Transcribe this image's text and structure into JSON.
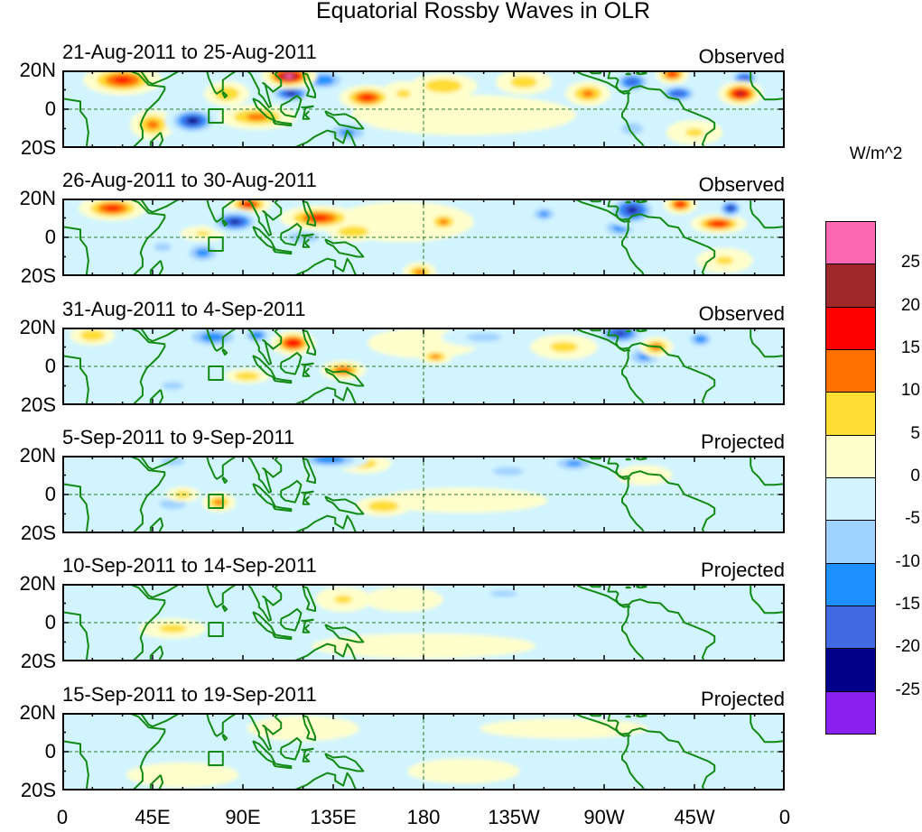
{
  "title": "Equatorial Rossby Waves in OLR",
  "lat_labels": [
    "20N",
    "0",
    "20S"
  ],
  "lon_labels": [
    "0",
    "45E",
    "90E",
    "135E",
    "180",
    "135W",
    "90W",
    "45W",
    "0"
  ],
  "colorbar": {
    "unit": "W/m^2",
    "labels": [
      "25",
      "20",
      "15",
      "10",
      "5",
      "0",
      "-5",
      "-10",
      "-15",
      "-20",
      "-25"
    ],
    "colors": [
      "#ff69b4",
      "#a02828",
      "#ff0000",
      "#ff7000",
      "#ffdd33",
      "#ffffcc",
      "#d2f4ff",
      "#a0d2ff",
      "#1e90ff",
      "#4169e1",
      "#00008b",
      "#8a20f0"
    ]
  },
  "coast_color": "#138a13",
  "panels": [
    {
      "date_range": "21-Aug-2011 to 25-Aug-2011",
      "type": "Observed",
      "blobs": [
        [
          200,
          -3,
          40,
          8,
          3
        ],
        [
          30,
          15,
          14,
          6,
          17
        ],
        [
          45,
          -8,
          8,
          6,
          12
        ],
        [
          65,
          -6,
          10,
          6,
          -23
        ],
        [
          82,
          8,
          8,
          5,
          10
        ],
        [
          97,
          -4,
          14,
          5,
          12
        ],
        [
          113,
          17,
          10,
          5,
          27
        ],
        [
          114,
          8,
          9,
          4,
          -22
        ],
        [
          130,
          15,
          10,
          5,
          -15
        ],
        [
          152,
          6,
          10,
          5,
          17
        ],
        [
          142,
          -12,
          10,
          5,
          -12
        ],
        [
          170,
          8,
          8,
          5,
          6
        ],
        [
          190,
          12,
          12,
          5,
          10
        ],
        [
          230,
          14,
          10,
          5,
          8
        ],
        [
          262,
          8,
          8,
          5,
          12
        ],
        [
          284,
          14,
          8,
          5,
          -18
        ],
        [
          304,
          18,
          6,
          4,
          17
        ],
        [
          307,
          8,
          8,
          4,
          -20
        ],
        [
          338,
          8,
          8,
          5,
          22
        ],
        [
          340,
          16,
          6,
          4,
          -20
        ],
        [
          284,
          -10,
          8,
          5,
          -8
        ],
        [
          315,
          -12,
          10,
          5,
          6
        ]
      ]
    },
    {
      "date_range": "26-Aug-2011 to 30-Aug-2011",
      "type": "Observed",
      "blobs": [
        [
          170,
          8,
          25,
          8,
          3
        ],
        [
          25,
          15,
          12,
          5,
          17
        ],
        [
          50,
          -5,
          10,
          5,
          -6
        ],
        [
          70,
          -8,
          8,
          5,
          -13
        ],
        [
          93,
          17,
          8,
          4,
          18
        ],
        [
          86,
          8,
          10,
          5,
          -22
        ],
        [
          128,
          10,
          14,
          5,
          17
        ],
        [
          145,
          3,
          10,
          4,
          10
        ],
        [
          120,
          0,
          10,
          4,
          -10
        ],
        [
          70,
          2,
          8,
          3,
          6
        ],
        [
          190,
          8,
          6,
          4,
          12
        ],
        [
          240,
          12,
          6,
          4,
          -12
        ],
        [
          284,
          14,
          10,
          7,
          -22
        ],
        [
          278,
          5,
          8,
          5,
          -13
        ],
        [
          308,
          17,
          6,
          4,
          18
        ],
        [
          333,
          15,
          5,
          4,
          -22
        ],
        [
          327,
          7,
          10,
          4,
          18
        ],
        [
          178,
          -18,
          6,
          4,
          12
        ],
        [
          330,
          -12,
          10,
          5,
          6
        ]
      ]
    },
    {
      "date_range": "31-Aug-2011 to 4-Sep-2011",
      "type": "Observed",
      "blobs": [
        [
          180,
          12,
          20,
          6,
          3
        ],
        [
          15,
          16,
          8,
          4,
          10
        ],
        [
          55,
          -10,
          12,
          5,
          -6
        ],
        [
          75,
          15,
          12,
          5,
          -14
        ],
        [
          97,
          16,
          6,
          4,
          -15
        ],
        [
          115,
          12,
          8,
          5,
          20
        ],
        [
          140,
          -2,
          8,
          4,
          15
        ],
        [
          92,
          -5,
          8,
          3,
          10
        ],
        [
          186,
          5,
          6,
          3,
          12
        ],
        [
          210,
          15,
          15,
          4,
          -7
        ],
        [
          250,
          10,
          12,
          5,
          7
        ],
        [
          278,
          17,
          10,
          5,
          -21
        ],
        [
          290,
          5,
          8,
          5,
          -12
        ],
        [
          296,
          10,
          6,
          4,
          13
        ],
        [
          318,
          14,
          6,
          4,
          -14
        ]
      ]
    },
    {
      "date_range": "5-Sep-2011 to 9-Sep-2011",
      "type": "Projected",
      "blobs": [
        [
          200,
          -3,
          30,
          5,
          4
        ],
        [
          55,
          -5,
          10,
          4,
          -8
        ],
        [
          55,
          17,
          10,
          4,
          -7
        ],
        [
          78,
          -4,
          6,
          4,
          12
        ],
        [
          60,
          0,
          6,
          3,
          8
        ],
        [
          133,
          18,
          14,
          4,
          -15
        ],
        [
          150,
          16,
          10,
          4,
          8
        ],
        [
          160,
          -6,
          10,
          4,
          10
        ],
        [
          222,
          12,
          10,
          3,
          -10
        ],
        [
          255,
          16,
          10,
          4,
          -12
        ],
        [
          290,
          10,
          10,
          4,
          4
        ]
      ]
    },
    {
      "date_range": "10-Sep-2011 to 14-Sep-2011",
      "type": "Projected",
      "blobs": [
        [
          180,
          -12,
          40,
          5,
          3
        ],
        [
          55,
          -3,
          12,
          4,
          7
        ],
        [
          140,
          12,
          10,
          5,
          6
        ],
        [
          170,
          12,
          14,
          5,
          4
        ],
        [
          220,
          15,
          15,
          4,
          -6
        ]
      ]
    },
    {
      "date_range": "15-Sep-2011 to 19-Sep-2011",
      "type": "Projected",
      "blobs": [
        [
          120,
          12,
          20,
          5,
          3
        ],
        [
          250,
          12,
          30,
          4,
          3
        ],
        [
          60,
          -12,
          20,
          5,
          3
        ],
        [
          200,
          -10,
          20,
          5,
          2
        ]
      ]
    }
  ]
}
